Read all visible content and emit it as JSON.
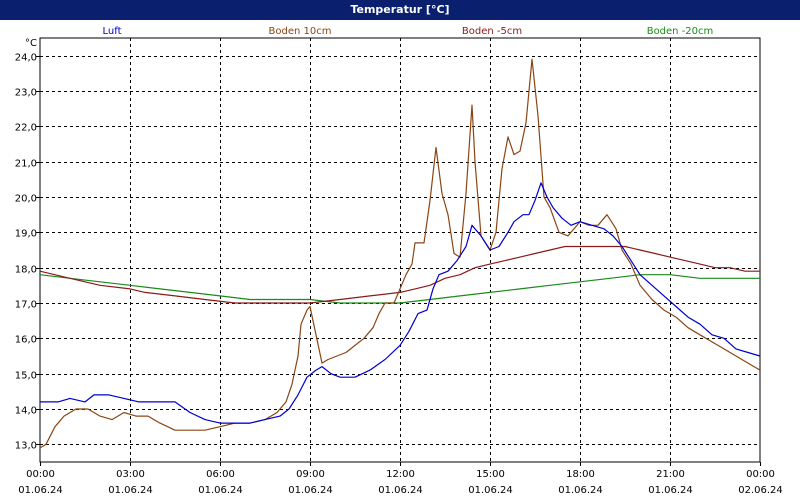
{
  "window": {
    "title": "Temperatur [°C]"
  },
  "chart_data": {
    "type": "line",
    "title": "Temperatur [°C]",
    "ylabel": "°C",
    "ylim": [
      12.5,
      24.5
    ],
    "yticks": [
      "13,0",
      "14,0",
      "15,0",
      "16,0",
      "17,0",
      "18,0",
      "19,0",
      "20,0",
      "21,0",
      "22,0",
      "23,0",
      "24,0"
    ],
    "ytick_values": [
      13,
      14,
      15,
      16,
      17,
      18,
      19,
      20,
      21,
      22,
      23,
      24
    ],
    "xlim": [
      0,
      24
    ],
    "xticks": [
      {
        "v": 0,
        "time": "00:00",
        "date": "01.06.24"
      },
      {
        "v": 3,
        "time": "03:00",
        "date": "01.06.24"
      },
      {
        "v": 6,
        "time": "06:00",
        "date": "01.06.24"
      },
      {
        "v": 9,
        "time": "09:00",
        "date": "01.06.24"
      },
      {
        "v": 12,
        "time": "12:00",
        "date": "01.06.24"
      },
      {
        "v": 15,
        "time": "15:00",
        "date": "01.06.24"
      },
      {
        "v": 18,
        "time": "18:00",
        "date": "01.06.24"
      },
      {
        "v": 21,
        "time": "21:00",
        "date": "01.06.24"
      },
      {
        "v": 24,
        "time": "00:00",
        "date": "02.06.24"
      }
    ],
    "grid": true,
    "legend_position": "top",
    "series": [
      {
        "name": "Luft",
        "color": "#0000cc",
        "points": [
          [
            0,
            14.2
          ],
          [
            0.6,
            14.2
          ],
          [
            1.0,
            14.3
          ],
          [
            1.5,
            14.2
          ],
          [
            1.8,
            14.4
          ],
          [
            2.3,
            14.4
          ],
          [
            2.8,
            14.3
          ],
          [
            3.3,
            14.2
          ],
          [
            4.0,
            14.2
          ],
          [
            4.5,
            14.2
          ],
          [
            5.0,
            13.9
          ],
          [
            5.5,
            13.7
          ],
          [
            6.0,
            13.6
          ],
          [
            6.5,
            13.6
          ],
          [
            7.0,
            13.6
          ],
          [
            7.5,
            13.7
          ],
          [
            8.0,
            13.8
          ],
          [
            8.3,
            14.0
          ],
          [
            8.6,
            14.4
          ],
          [
            8.9,
            14.9
          ],
          [
            9.2,
            15.1
          ],
          [
            9.4,
            15.2
          ],
          [
            9.7,
            15.0
          ],
          [
            10.0,
            14.9
          ],
          [
            10.5,
            14.9
          ],
          [
            11.0,
            15.1
          ],
          [
            11.5,
            15.4
          ],
          [
            12.0,
            15.8
          ],
          [
            12.3,
            16.2
          ],
          [
            12.6,
            16.7
          ],
          [
            12.9,
            16.8
          ],
          [
            13.1,
            17.4
          ],
          [
            13.3,
            17.8
          ],
          [
            13.6,
            17.9
          ],
          [
            13.9,
            18.2
          ],
          [
            14.2,
            18.6
          ],
          [
            14.4,
            19.2
          ],
          [
            14.7,
            18.9
          ],
          [
            15.0,
            18.5
          ],
          [
            15.3,
            18.6
          ],
          [
            15.6,
            19.0
          ],
          [
            15.8,
            19.3
          ],
          [
            16.1,
            19.5
          ],
          [
            16.3,
            19.5
          ],
          [
            16.5,
            19.9
          ],
          [
            16.7,
            20.4
          ],
          [
            16.9,
            20.0
          ],
          [
            17.1,
            19.7
          ],
          [
            17.4,
            19.4
          ],
          [
            17.7,
            19.2
          ],
          [
            18.0,
            19.3
          ],
          [
            18.4,
            19.2
          ],
          [
            18.8,
            19.1
          ],
          [
            19.1,
            18.9
          ],
          [
            19.4,
            18.6
          ],
          [
            19.7,
            18.2
          ],
          [
            20.0,
            17.8
          ],
          [
            20.4,
            17.5
          ],
          [
            20.8,
            17.2
          ],
          [
            21.2,
            16.9
          ],
          [
            21.6,
            16.6
          ],
          [
            22.0,
            16.4
          ],
          [
            22.4,
            16.1
          ],
          [
            22.8,
            16.0
          ],
          [
            23.2,
            15.7
          ],
          [
            23.6,
            15.6
          ],
          [
            24.0,
            15.5
          ]
        ]
      },
      {
        "name": "Boden 10cm",
        "color": "#8b4513",
        "points": [
          [
            0,
            12.9
          ],
          [
            0.2,
            13.0
          ],
          [
            0.5,
            13.5
          ],
          [
            0.8,
            13.8
          ],
          [
            1.2,
            14.0
          ],
          [
            1.6,
            14.0
          ],
          [
            2.0,
            13.8
          ],
          [
            2.4,
            13.7
          ],
          [
            2.8,
            13.9
          ],
          [
            3.2,
            13.8
          ],
          [
            3.6,
            13.8
          ],
          [
            4.0,
            13.6
          ],
          [
            4.5,
            13.4
          ],
          [
            5.0,
            13.4
          ],
          [
            5.5,
            13.4
          ],
          [
            6.0,
            13.5
          ],
          [
            6.5,
            13.6
          ],
          [
            7.0,
            13.6
          ],
          [
            7.5,
            13.7
          ],
          [
            7.9,
            13.9
          ],
          [
            8.2,
            14.2
          ],
          [
            8.4,
            14.7
          ],
          [
            8.6,
            15.5
          ],
          [
            8.7,
            16.4
          ],
          [
            8.9,
            16.8
          ],
          [
            9.0,
            16.9
          ],
          [
            9.1,
            16.5
          ],
          [
            9.3,
            15.7
          ],
          [
            9.4,
            15.3
          ],
          [
            9.6,
            15.4
          ],
          [
            9.9,
            15.5
          ],
          [
            10.2,
            15.6
          ],
          [
            10.5,
            15.8
          ],
          [
            10.8,
            16.0
          ],
          [
            11.1,
            16.3
          ],
          [
            11.3,
            16.7
          ],
          [
            11.5,
            17.0
          ],
          [
            11.8,
            17.0
          ],
          [
            12.0,
            17.4
          ],
          [
            12.2,
            17.8
          ],
          [
            12.4,
            18.1
          ],
          [
            12.5,
            18.7
          ],
          [
            12.8,
            18.7
          ],
          [
            13.0,
            19.9
          ],
          [
            13.2,
            21.4
          ],
          [
            13.4,
            20.1
          ],
          [
            13.6,
            19.5
          ],
          [
            13.8,
            18.4
          ],
          [
            14.0,
            18.3
          ],
          [
            14.2,
            20.1
          ],
          [
            14.4,
            22.6
          ],
          [
            14.5,
            21.0
          ],
          [
            14.7,
            18.9
          ],
          [
            15.0,
            18.5
          ],
          [
            15.2,
            19.0
          ],
          [
            15.4,
            20.8
          ],
          [
            15.6,
            21.7
          ],
          [
            15.8,
            21.2
          ],
          [
            16.0,
            21.3
          ],
          [
            16.2,
            22.1
          ],
          [
            16.4,
            23.9
          ],
          [
            16.6,
            22.3
          ],
          [
            16.8,
            20.0
          ],
          [
            17.0,
            19.7
          ],
          [
            17.3,
            19.0
          ],
          [
            17.6,
            18.9
          ],
          [
            18.0,
            19.3
          ],
          [
            18.3,
            19.2
          ],
          [
            18.6,
            19.2
          ],
          [
            18.9,
            19.5
          ],
          [
            19.2,
            19.1
          ],
          [
            19.4,
            18.5
          ],
          [
            19.7,
            18.1
          ],
          [
            20.0,
            17.5
          ],
          [
            20.4,
            17.1
          ],
          [
            20.8,
            16.8
          ],
          [
            21.2,
            16.6
          ],
          [
            21.6,
            16.3
          ],
          [
            22.0,
            16.1
          ],
          [
            22.4,
            15.9
          ],
          [
            22.8,
            15.7
          ],
          [
            23.2,
            15.5
          ],
          [
            23.6,
            15.3
          ],
          [
            24.0,
            15.1
          ]
        ]
      },
      {
        "name": "Boden -5cm",
        "color": "#8b1a1a",
        "points": [
          [
            0,
            17.9
          ],
          [
            1.0,
            17.7
          ],
          [
            2.0,
            17.5
          ],
          [
            3.0,
            17.4
          ],
          [
            3.5,
            17.3
          ],
          [
            4.5,
            17.2
          ],
          [
            5.5,
            17.1
          ],
          [
            6.5,
            17.0
          ],
          [
            7.5,
            17.0
          ],
          [
            8.5,
            17.0
          ],
          [
            9.0,
            17.0
          ],
          [
            10.0,
            17.1
          ],
          [
            11.0,
            17.2
          ],
          [
            12.0,
            17.3
          ],
          [
            12.5,
            17.4
          ],
          [
            13.0,
            17.5
          ],
          [
            13.5,
            17.7
          ],
          [
            14.0,
            17.8
          ],
          [
            14.5,
            18.0
          ],
          [
            15.0,
            18.1
          ],
          [
            15.5,
            18.2
          ],
          [
            16.0,
            18.3
          ],
          [
            16.5,
            18.4
          ],
          [
            17.0,
            18.5
          ],
          [
            17.5,
            18.6
          ],
          [
            18.0,
            18.6
          ],
          [
            19.0,
            18.6
          ],
          [
            19.5,
            18.6
          ],
          [
            20.0,
            18.5
          ],
          [
            20.5,
            18.4
          ],
          [
            21.0,
            18.3
          ],
          [
            21.5,
            18.2
          ],
          [
            22.0,
            18.1
          ],
          [
            22.5,
            18.0
          ],
          [
            23.0,
            18.0
          ],
          [
            23.5,
            17.9
          ],
          [
            24.0,
            17.9
          ]
        ]
      },
      {
        "name": "Boden -20cm",
        "color": "#1a8a1a",
        "points": [
          [
            0,
            17.8
          ],
          [
            1.0,
            17.7
          ],
          [
            2.0,
            17.6
          ],
          [
            3.0,
            17.5
          ],
          [
            4.0,
            17.4
          ],
          [
            5.0,
            17.3
          ],
          [
            6.0,
            17.2
          ],
          [
            7.0,
            17.1
          ],
          [
            8.0,
            17.1
          ],
          [
            9.0,
            17.1
          ],
          [
            10.0,
            17.0
          ],
          [
            11.0,
            17.0
          ],
          [
            12.0,
            17.0
          ],
          [
            13.0,
            17.1
          ],
          [
            14.0,
            17.2
          ],
          [
            15.0,
            17.3
          ],
          [
            16.0,
            17.4
          ],
          [
            17.0,
            17.5
          ],
          [
            18.0,
            17.6
          ],
          [
            19.0,
            17.7
          ],
          [
            20.0,
            17.8
          ],
          [
            21.0,
            17.8
          ],
          [
            22.0,
            17.7
          ],
          [
            23.0,
            17.7
          ],
          [
            24.0,
            17.7
          ]
        ]
      }
    ]
  }
}
